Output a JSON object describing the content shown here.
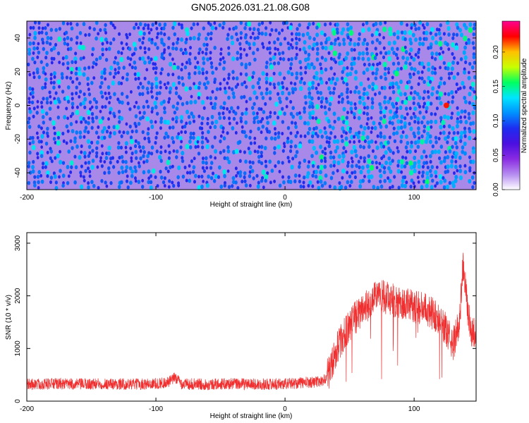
{
  "chart_data": [
    {
      "type": "heatmap",
      "title": "GN05.2026.031.21.08.G08",
      "xlabel": "Height of straight line (km)",
      "ylabel": "Frequency (Hz)",
      "xlim": [
        -200,
        148
      ],
      "ylim": [
        -50,
        50
      ],
      "xticks": [
        -200,
        -100,
        0,
        100
      ],
      "yticks": [
        -40,
        -20,
        0,
        20,
        40
      ],
      "colorbar": {
        "label": "Normalized spectral amplitude",
        "range": [
          0,
          0.245
        ],
        "ticks": [
          "0.00",
          "0.05",
          "0.10",
          "0.15",
          "0.20"
        ],
        "colormap": [
          "#ffffff",
          "#b58cf0",
          "#8a2be2",
          "#4b0fe0",
          "#1e2cf0",
          "#0090ff",
          "#00e5ff",
          "#00ff60",
          "#c8ff00",
          "#ffc000",
          "#ff0000",
          "#ff0090"
        ]
      },
      "features": [
        {
          "x_range": [
            -200,
            15
          ],
          "amplitude": 0.08
        },
        {
          "x_range": [
            15,
            148
          ],
          "amplitude": 0.12
        },
        {
          "x": 125,
          "y": 0,
          "amplitude": 0.22
        }
      ]
    },
    {
      "type": "line",
      "xlabel": "Height of straight line (km)",
      "ylabel": "SNR (10 * v/v)",
      "xlim": [
        -200,
        148
      ],
      "ylim": [
        0,
        3200
      ],
      "xticks": [
        -200,
        -100,
        0,
        100
      ],
      "yticks": [
        0,
        1000,
        2000,
        3000
      ],
      "color": "#f03030",
      "series": [
        {
          "x": [
            -200,
            -180,
            -160,
            -140,
            -120,
            -100,
            -90,
            -85,
            -80,
            -60,
            -40,
            -20,
            0,
            20,
            30,
            35,
            40,
            50,
            60,
            70,
            75,
            80,
            90,
            100,
            110,
            115,
            120,
            125,
            130,
            135,
            138,
            142,
            145,
            148
          ],
          "y": [
            320,
            330,
            320,
            330,
            320,
            330,
            360,
            450,
            330,
            320,
            330,
            320,
            330,
            360,
            380,
            600,
            1000,
            1450,
            1750,
            1950,
            2000,
            1950,
            1850,
            1800,
            1750,
            1650,
            1500,
            1350,
            1050,
            1500,
            2600,
            1600,
            1300,
            1300
          ]
        }
      ]
    }
  ]
}
